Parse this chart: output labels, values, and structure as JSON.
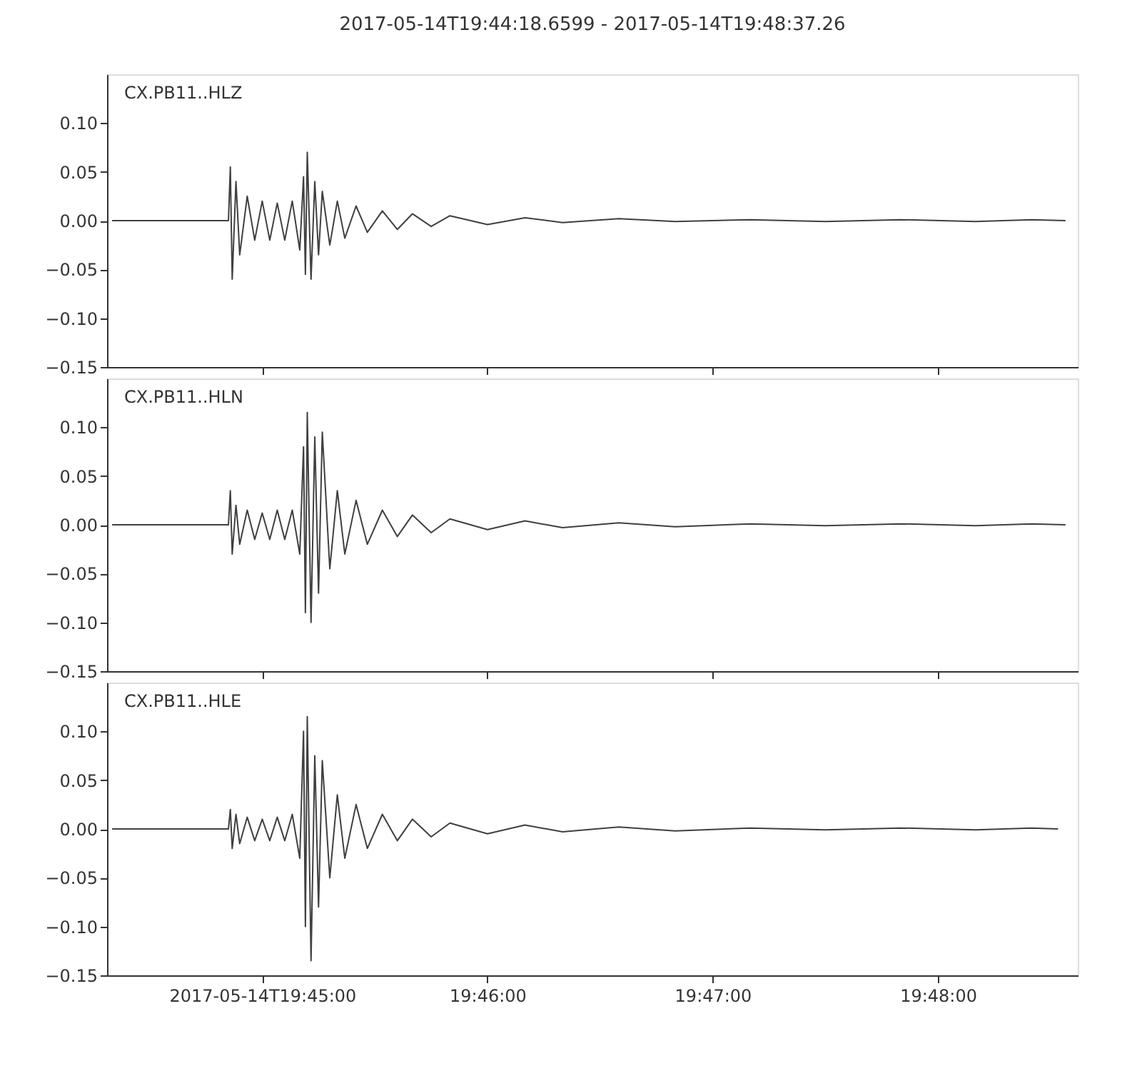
{
  "chart_data": [
    {
      "type": "line",
      "title": "2017-05-14T19:44:18.6599  -  2017-05-14T19:48:37.26",
      "annotations": [
        "CX.PB11..HLZ"
      ],
      "color": "#404040",
      "line_style": "solid",
      "marker": "none",
      "grid": false,
      "tick_labels": "y",
      "x": [
        19.738889,
        19.7475,
        19.747639,
        19.747778,
        19.748056,
        19.748333,
        19.748889,
        19.749444,
        19.75,
        19.750556,
        19.751111,
        19.751667,
        19.752222,
        19.752778,
        19.753056,
        19.753194,
        19.753333,
        19.753611,
        19.753889,
        19.754167,
        19.754444,
        19.755,
        19.755556,
        19.756111,
        19.756944,
        19.757778,
        19.758889,
        19.76,
        19.761111,
        19.7625,
        19.763889,
        19.766667,
        19.769444,
        19.772222,
        19.776389,
        19.780556,
        19.786111,
        19.791667,
        19.797222,
        19.802778,
        19.806944,
        19.809444
      ],
      "values": [
        0,
        0,
        0.055,
        -0.06,
        0.04,
        -0.035,
        0.025,
        -0.02,
        0.02,
        -0.02,
        0.018,
        -0.02,
        0.02,
        -0.03,
        0.045,
        -0.055,
        0.07,
        -0.06,
        0.04,
        -0.035,
        0.03,
        -0.025,
        0.02,
        -0.018,
        0.015,
        -0.012,
        0.01,
        -0.009,
        0.007,
        -0.006,
        0.005,
        -0.004,
        0.003,
        -0.002,
        0.002,
        -0.001,
        0.001,
        -0.001,
        0.001,
        -0.001,
        0.001,
        0
      ],
      "xlim": [
        19.738517,
        19.81035
      ],
      "xticks": [
        {
          "value": 19.75,
          "label": null
        },
        {
          "value": 19.766667,
          "label": null
        },
        {
          "value": 19.783333,
          "label": null
        },
        {
          "value": 19.8,
          "label": null
        }
      ],
      "ylim": [
        -0.15,
        0.15
      ],
      "yticks": [
        {
          "value": -0.15,
          "label": "−0.15"
        },
        {
          "value": -0.1,
          "label": "−0.10"
        },
        {
          "value": -0.05,
          "label": "−0.05"
        },
        {
          "value": 0,
          "label": "0.00"
        },
        {
          "value": 0.05,
          "label": "0.05"
        },
        {
          "value": 0.1,
          "label": "0.10"
        }
      ]
    },
    {
      "type": "line",
      "annotations": [
        "CX.PB11..HLN"
      ],
      "color": "#404040",
      "line_style": "solid",
      "marker": "none",
      "grid": false,
      "tick_labels": "y",
      "x": [
        19.738889,
        19.7475,
        19.747639,
        19.747778,
        19.748056,
        19.748333,
        19.748889,
        19.749444,
        19.75,
        19.750556,
        19.751111,
        19.751667,
        19.752222,
        19.752778,
        19.753056,
        19.753194,
        19.753333,
        19.753611,
        19.753889,
        19.754167,
        19.754444,
        19.755,
        19.755556,
        19.756111,
        19.756944,
        19.757778,
        19.758889,
        19.76,
        19.761111,
        19.7625,
        19.763889,
        19.766667,
        19.769444,
        19.772222,
        19.776389,
        19.780556,
        19.786111,
        19.791667,
        19.797222,
        19.802778,
        19.806944,
        19.809444
      ],
      "values": [
        0,
        0,
        0.035,
        -0.03,
        0.02,
        -0.02,
        0.015,
        -0.015,
        0.012,
        -0.015,
        0.015,
        -0.015,
        0.015,
        -0.03,
        0.08,
        -0.09,
        0.115,
        -0.1,
        0.09,
        -0.07,
        0.095,
        -0.045,
        0.035,
        -0.03,
        0.025,
        -0.02,
        0.015,
        -0.012,
        0.01,
        -0.008,
        0.006,
        -0.005,
        0.004,
        -0.003,
        0.002,
        -0.002,
        0.001,
        -0.001,
        0.001,
        -0.001,
        0.001,
        0
      ],
      "xlim": [
        19.738517,
        19.81035
      ],
      "xticks": [
        {
          "value": 19.75,
          "label": null
        },
        {
          "value": 19.766667,
          "label": null
        },
        {
          "value": 19.783333,
          "label": null
        },
        {
          "value": 19.8,
          "label": null
        }
      ],
      "ylim": [
        -0.15,
        0.15
      ],
      "yticks": [
        {
          "value": -0.15,
          "label": "−0.15"
        },
        {
          "value": -0.1,
          "label": "−0.10"
        },
        {
          "value": -0.05,
          "label": "−0.05"
        },
        {
          "value": 0,
          "label": "0.00"
        },
        {
          "value": 0.05,
          "label": "0.05"
        },
        {
          "value": 0.1,
          "label": "0.10"
        }
      ]
    },
    {
      "type": "line",
      "annotations": [
        "CX.PB11..HLE"
      ],
      "color": "#404040",
      "line_style": "solid",
      "marker": "none",
      "grid": false,
      "x": [
        19.738889,
        19.7475,
        19.747639,
        19.747778,
        19.748056,
        19.748333,
        19.748889,
        19.749444,
        19.75,
        19.750556,
        19.751111,
        19.751667,
        19.752222,
        19.752778,
        19.753056,
        19.753194,
        19.753333,
        19.753611,
        19.753889,
        19.754167,
        19.754444,
        19.755,
        19.755556,
        19.756111,
        19.756944,
        19.757778,
        19.758889,
        19.76,
        19.761111,
        19.7625,
        19.763889,
        19.766667,
        19.769444,
        19.772222,
        19.776389,
        19.780556,
        19.786111,
        19.791667,
        19.797222,
        19.802778,
        19.806944,
        19.808889
      ],
      "values": [
        0,
        0,
        0.02,
        -0.02,
        0.015,
        -0.015,
        0.012,
        -0.012,
        0.01,
        -0.012,
        0.012,
        -0.012,
        0.015,
        -0.03,
        0.1,
        -0.1,
        0.115,
        -0.135,
        0.075,
        -0.08,
        0.07,
        -0.05,
        0.035,
        -0.03,
        0.025,
        -0.02,
        0.015,
        -0.012,
        0.01,
        -0.008,
        0.006,
        -0.005,
        0.004,
        -0.003,
        0.002,
        -0.002,
        0.001,
        -0.001,
        0.001,
        -0.001,
        0.001,
        0
      ],
      "xlim": [
        19.738517,
        19.81035
      ],
      "xticks": [
        {
          "value": 19.75,
          "label": "2017-05-14T19:45:00"
        },
        {
          "value": 19.766667,
          "label": "19:46:00"
        },
        {
          "value": 19.783333,
          "label": "19:47:00"
        },
        {
          "value": 19.8,
          "label": "19:48:00"
        }
      ],
      "ylim": [
        -0.15,
        0.15
      ],
      "yticks": [
        {
          "value": -0.15,
          "label": "−0.15"
        },
        {
          "value": -0.1,
          "label": "−0.10"
        },
        {
          "value": -0.05,
          "label": "−0.05"
        },
        {
          "value": 0,
          "label": "0.00"
        },
        {
          "value": 0.05,
          "label": "0.05"
        },
        {
          "value": 0.1,
          "label": "0.10"
        }
      ]
    }
  ]
}
